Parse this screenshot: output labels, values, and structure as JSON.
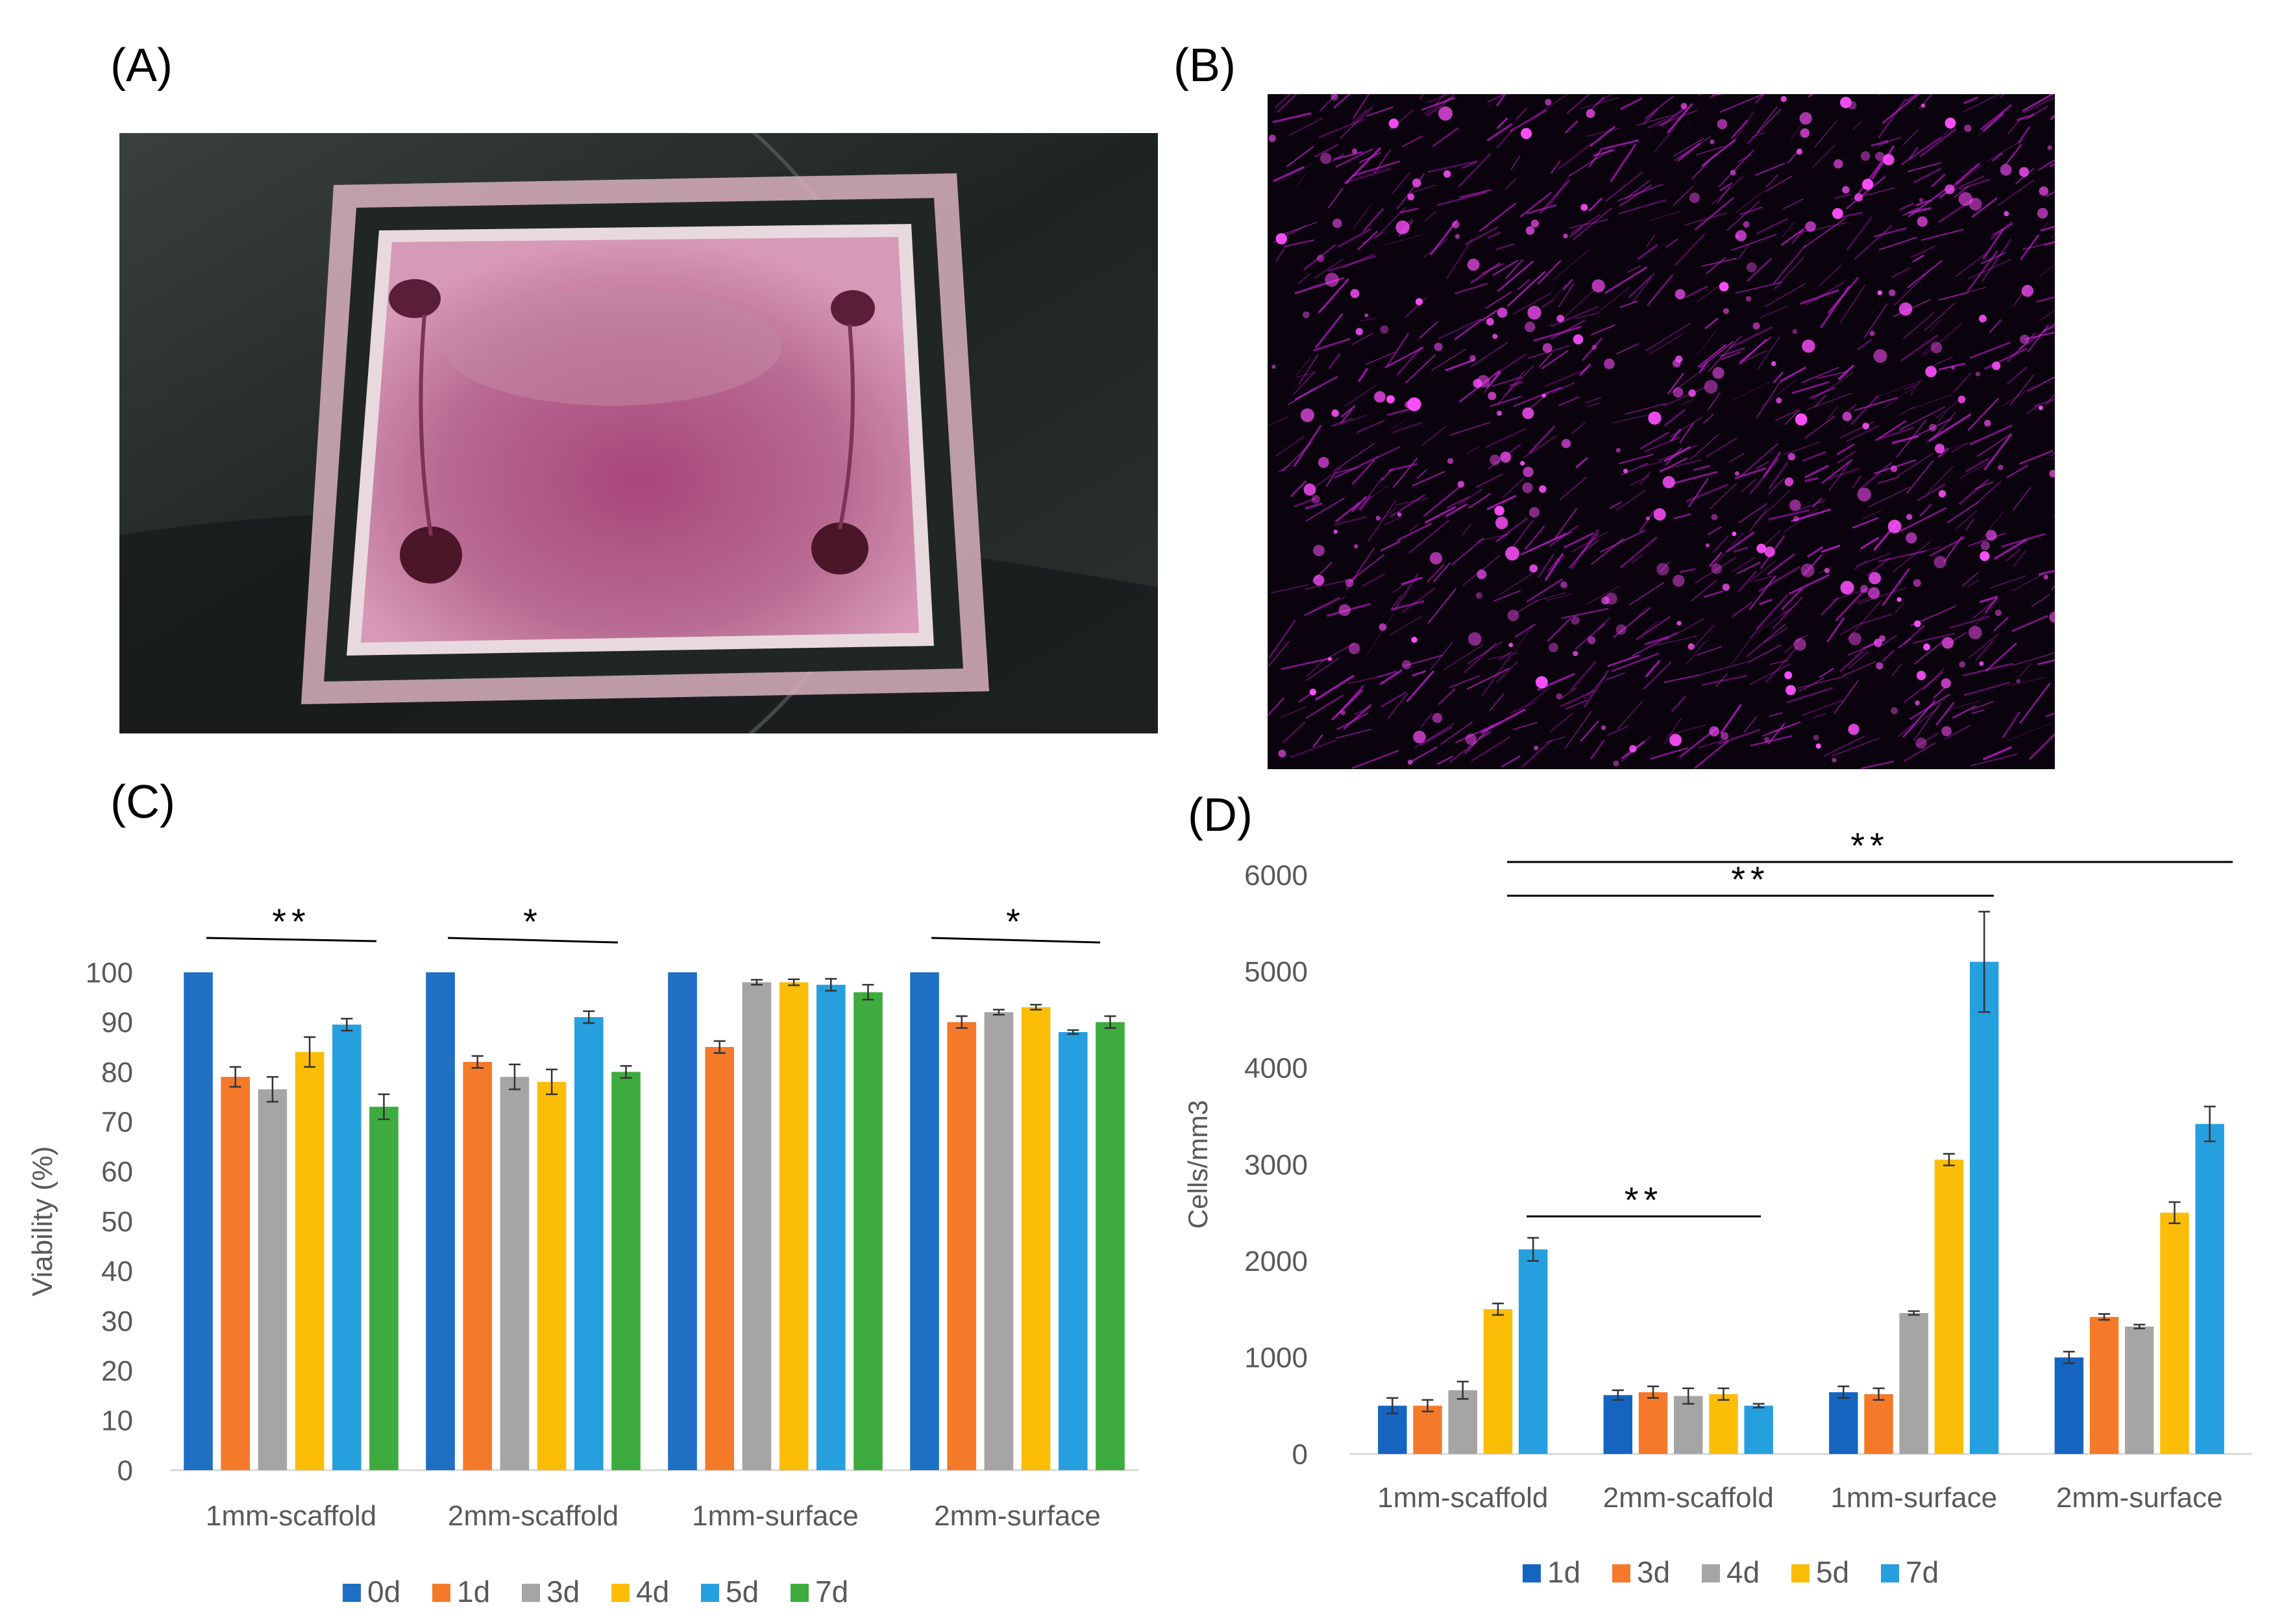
{
  "panels": {
    "a": {
      "label": "(A)"
    },
    "b": {
      "label": "(B)"
    },
    "c": {
      "label": "(C)"
    },
    "d": {
      "label": "(D)"
    }
  },
  "colors": {
    "photo_a_bg": "#1c2220",
    "photo_a_gel": "#b06a8e",
    "photo_b_bg": "#0a020c",
    "photo_b_cells": "#d020e0"
  },
  "chart_data": [
    {
      "panel": "C",
      "type": "bar",
      "categories": [
        "1mm-scaffold",
        "2mm-scaffold",
        "1mm-surface",
        "2mm-surface"
      ],
      "ylabel": "Viability (%)",
      "xlabel": "",
      "ylim": [
        0,
        100
      ],
      "yticks": [
        0,
        10,
        20,
        30,
        40,
        50,
        60,
        70,
        80,
        90,
        100
      ],
      "grid": false,
      "legend": "bottom",
      "series": [
        {
          "name": "0d",
          "color": "#1f6fc5",
          "values": [
            100,
            100,
            100,
            100
          ],
          "errors": [
            0,
            0,
            0,
            0
          ]
        },
        {
          "name": "1d",
          "color": "#f47a2a",
          "values": [
            79,
            82,
            85,
            90
          ],
          "errors": [
            2,
            1.2,
            1.2,
            1.2
          ]
        },
        {
          "name": "3d",
          "color": "#a5a5a5",
          "values": [
            76.5,
            79,
            98,
            92
          ],
          "errors": [
            2.5,
            2.5,
            0.5,
            0.5
          ]
        },
        {
          "name": "4d",
          "color": "#fbbd06",
          "values": [
            84,
            78,
            98,
            93
          ],
          "errors": [
            3,
            2.5,
            0.6,
            0.5
          ]
        },
        {
          "name": "5d",
          "color": "#269fdf",
          "values": [
            89.5,
            91,
            97.5,
            88
          ],
          "errors": [
            1.2,
            1.2,
            1.2,
            0.4
          ]
        },
        {
          "name": "7d",
          "color": "#3eab3e",
          "values": [
            73,
            80,
            96,
            90
          ],
          "errors": [
            2.5,
            1.2,
            1.5,
            1.2
          ]
        }
      ],
      "significance": [
        {
          "label": "**",
          "from": "1mm-scaffold",
          "to": "1mm-scaffold"
        },
        {
          "label": "*",
          "from": "2mm-scaffold",
          "to": "2mm-scaffold"
        },
        {
          "label": "*",
          "from": "2mm-surface",
          "to": "2mm-surface"
        }
      ]
    },
    {
      "panel": "D",
      "type": "bar",
      "categories": [
        "1mm-scaffold",
        "2mm-scaffold",
        "1mm-surface",
        "2mm-surface"
      ],
      "ylabel": "Cells/mm3",
      "xlabel": "",
      "ylim": [
        0,
        6000
      ],
      "yticks": [
        0,
        1000,
        2000,
        3000,
        4000,
        5000,
        6000
      ],
      "grid": false,
      "legend": "bottom",
      "series": [
        {
          "name": "1d",
          "color": "#1565c0",
          "values": [
            500,
            610,
            640,
            1000
          ],
          "errors": [
            80,
            50,
            60,
            60
          ]
        },
        {
          "name": "3d",
          "color": "#f47a2a",
          "values": [
            500,
            640,
            620,
            1420
          ],
          "errors": [
            60,
            60,
            60,
            30
          ]
        },
        {
          "name": "4d",
          "color": "#a5a5a5",
          "values": [
            660,
            600,
            1460,
            1320
          ],
          "errors": [
            90,
            80,
            20,
            20
          ]
        },
        {
          "name": "5d",
          "color": "#fbbd06",
          "values": [
            1500,
            620,
            3050,
            2500
          ],
          "errors": [
            60,
            60,
            60,
            110
          ]
        },
        {
          "name": "7d",
          "color": "#269fdf",
          "values": [
            2120,
            500,
            5100,
            3420
          ],
          "errors": [
            120,
            20,
            520,
            180
          ]
        }
      ],
      "significance": [
        {
          "label": "**",
          "from": "1mm-scaffold",
          "to": "2mm-surface"
        },
        {
          "label": "**",
          "from": "1mm-scaffold",
          "to": "1mm-surface"
        },
        {
          "label": "**",
          "from": "1mm-scaffold",
          "to": "2mm-scaffold"
        }
      ]
    }
  ]
}
